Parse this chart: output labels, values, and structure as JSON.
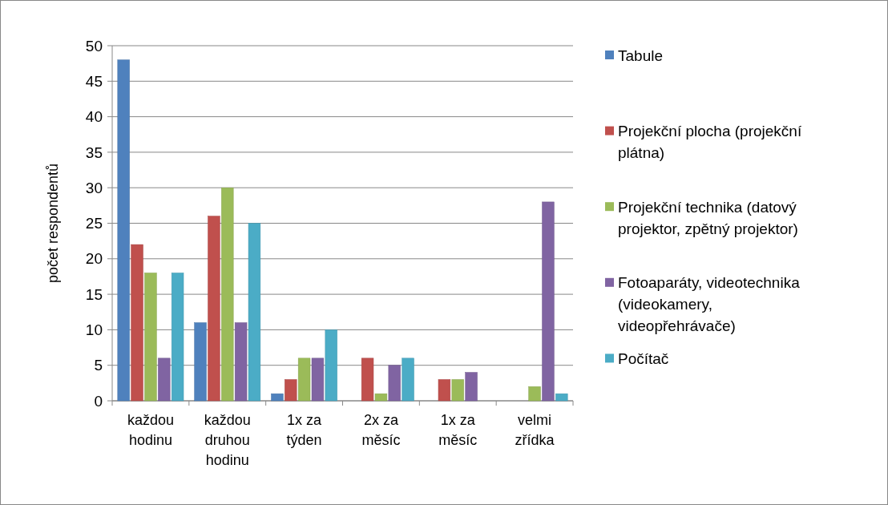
{
  "chart_data": {
    "type": "bar",
    "ylabel": "počet respondentů",
    "categories": [
      "každou hodinu",
      "každou druhou hodinu",
      "1x za týden",
      "2x za měsíc",
      "1x za měsíc",
      "velmi zřídka"
    ],
    "series": [
      {
        "name": "Tabule",
        "color": "#4f81bd",
        "values": [
          48,
          11,
          1,
          0,
          0,
          0
        ]
      },
      {
        "name": "Projekční plocha (projekční plátna)",
        "color": "#c0504d",
        "values": [
          22,
          26,
          3,
          6,
          3,
          0
        ]
      },
      {
        "name": "Projekční technika (datový projektor, zpětný projektor)",
        "color": "#9bbb59",
        "values": [
          18,
          30,
          6,
          1,
          3,
          2
        ]
      },
      {
        "name": "Fotoaparáty, videotechnika (videokamery, videopřehrávače)",
        "color": "#8064a2",
        "values": [
          6,
          11,
          6,
          5,
          4,
          28
        ]
      },
      {
        "name": "Počítač",
        "color": "#4bacc6",
        "values": [
          18,
          25,
          10,
          6,
          0,
          1
        ]
      }
    ],
    "ylim": [
      0,
      50
    ],
    "yticks": [
      0,
      5,
      10,
      15,
      20,
      25,
      30,
      35,
      40,
      45,
      50
    ],
    "grid": "y",
    "legend": "right"
  }
}
